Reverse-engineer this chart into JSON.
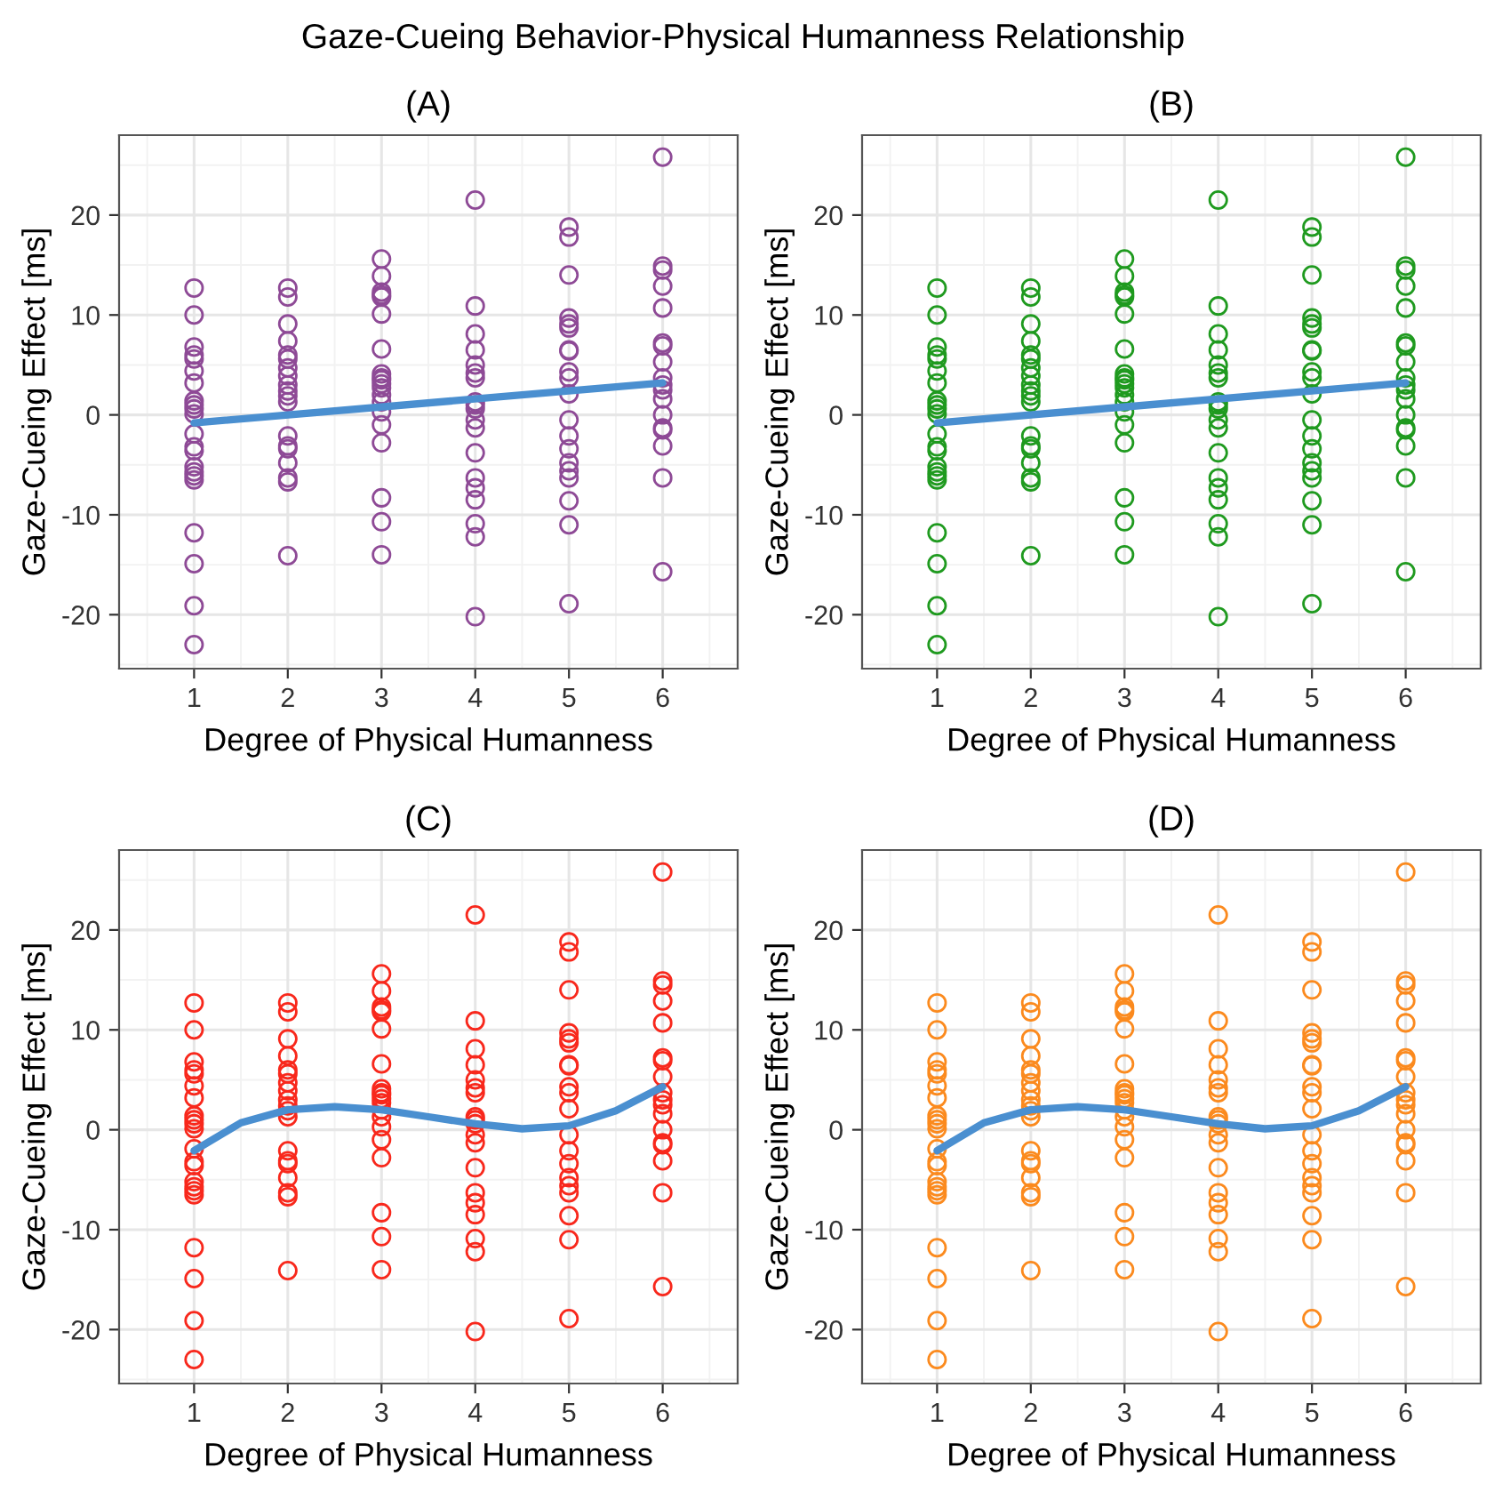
{
  "chart_data": [
    {
      "type": "scatter",
      "title": "(A)",
      "annotations": [
        "Gaze-Cueing Behavior-Physical Humanness Relationship"
      ],
      "xlabel": "Degree of Physical Humanness",
      "ylabel": "Gaze-Cueing Effect [ms]",
      "xlim": [
        0.2,
        6.8
      ],
      "xticks": [
        1,
        2,
        3,
        4,
        5,
        6
      ],
      "ylim": [
        -25.4,
        28.0
      ],
      "yticks": [
        -20,
        -10,
        0,
        10,
        20
      ],
      "grid": true,
      "marker": "circle",
      "series": [
        {
          "color": "#8e4a96",
          "x": [
            1,
            1,
            1,
            1,
            1,
            1,
            1,
            1,
            1,
            1,
            1,
            1,
            1,
            1,
            1,
            1,
            1,
            1,
            1,
            1,
            1,
            1,
            2,
            2,
            2,
            2,
            2,
            2,
            2,
            2,
            2,
            2,
            2,
            2,
            2,
            2,
            2,
            2,
            2,
            2,
            2,
            3,
            3,
            3,
            3,
            3,
            3,
            3,
            3,
            3,
            3,
            3,
            3,
            3,
            3,
            3,
            3,
            3,
            3,
            3,
            3,
            4,
            4,
            4,
            4,
            4,
            4,
            4,
            4,
            4,
            4,
            4,
            4,
            4,
            4,
            4,
            4,
            4,
            4,
            4,
            5,
            5,
            5,
            5,
            5,
            5,
            5,
            5,
            5,
            5,
            5,
            5,
            5,
            5,
            5,
            5,
            5,
            5,
            5,
            5,
            6,
            6,
            6,
            6,
            6,
            6,
            6,
            6,
            6,
            6,
            6,
            6,
            6,
            6,
            6,
            6,
            6,
            6
          ],
          "values": [
            12.7,
            10.0,
            6.8,
            6.0,
            5.6,
            4.4,
            3.2,
            1.4,
            1.0,
            0.6,
            0.1,
            -1.9,
            -3.2,
            -3.6,
            -5.2,
            -5.7,
            -6.1,
            -6.5,
            -11.8,
            -14.9,
            -19.1,
            -23.0,
            12.7,
            11.8,
            9.1,
            7.4,
            6.0,
            5.6,
            4.7,
            3.9,
            3.0,
            2.4,
            1.9,
            1.3,
            -2.1,
            -3.1,
            -3.4,
            -4.8,
            -6.3,
            -6.7,
            -14.1,
            15.6,
            13.9,
            12.3,
            12.0,
            11.8,
            10.1,
            6.6,
            4.1,
            3.7,
            3.5,
            3.1,
            2.7,
            2.0,
            1.3,
            0.3,
            -1.0,
            -2.8,
            -8.3,
            -10.7,
            -14.0,
            21.5,
            10.9,
            8.1,
            6.5,
            5.0,
            4.2,
            3.7,
            1.3,
            1.0,
            0.6,
            -0.5,
            -1.3,
            -3.8,
            -6.3,
            -7.3,
            -8.5,
            -10.9,
            -12.2,
            -20.2,
            18.8,
            17.8,
            14.0,
            9.7,
            9.1,
            8.7,
            6.5,
            6.4,
            4.3,
            3.7,
            2.1,
            -0.5,
            -2.1,
            -3.4,
            -4.8,
            -5.6,
            -6.3,
            -8.6,
            -11.0,
            -18.9,
            25.8,
            14.9,
            14.5,
            12.9,
            10.7,
            7.2,
            6.9,
            5.3,
            3.7,
            3.0,
            2.5,
            1.6,
            0.0,
            -1.3,
            -1.5,
            -3.1,
            -6.3,
            -15.7
          ]
        },
        {
          "type": "line",
          "color": "#4a8fd0",
          "marker": "none",
          "x": [
            1,
            6
          ],
          "values": [
            -0.8,
            3.2
          ]
        }
      ]
    },
    {
      "type": "scatter",
      "title": "(B)",
      "xlabel": "Degree of Physical Humanness",
      "ylabel": "Gaze-Cueing Effect [ms]",
      "xlim": [
        0.2,
        6.8
      ],
      "xticks": [
        1,
        2,
        3,
        4,
        5,
        6
      ],
      "ylim": [
        -25.4,
        28.0
      ],
      "yticks": [
        -20,
        -10,
        0,
        10,
        20
      ],
      "grid": true,
      "marker": "circle",
      "series": [
        {
          "color": "#1f9a1f",
          "x": [
            1,
            1,
            1,
            1,
            1,
            1,
            1,
            1,
            1,
            1,
            1,
            1,
            1,
            1,
            1,
            1,
            1,
            1,
            1,
            1,
            1,
            1,
            2,
            2,
            2,
            2,
            2,
            2,
            2,
            2,
            2,
            2,
            2,
            2,
            2,
            2,
            2,
            2,
            2,
            2,
            2,
            3,
            3,
            3,
            3,
            3,
            3,
            3,
            3,
            3,
            3,
            3,
            3,
            3,
            3,
            3,
            3,
            3,
            3,
            3,
            3,
            4,
            4,
            4,
            4,
            4,
            4,
            4,
            4,
            4,
            4,
            4,
            4,
            4,
            4,
            4,
            4,
            4,
            4,
            4,
            5,
            5,
            5,
            5,
            5,
            5,
            5,
            5,
            5,
            5,
            5,
            5,
            5,
            5,
            5,
            5,
            5,
            5,
            5,
            5,
            6,
            6,
            6,
            6,
            6,
            6,
            6,
            6,
            6,
            6,
            6,
            6,
            6,
            6,
            6,
            6,
            6,
            6
          ],
          "values": [
            12.7,
            10.0,
            6.8,
            6.0,
            5.6,
            4.4,
            3.2,
            1.4,
            1.0,
            0.6,
            0.1,
            -1.9,
            -3.2,
            -3.6,
            -5.2,
            -5.7,
            -6.1,
            -6.5,
            -11.8,
            -14.9,
            -19.1,
            -23.0,
            12.7,
            11.8,
            9.1,
            7.4,
            6.0,
            5.6,
            4.7,
            3.9,
            3.0,
            2.4,
            1.9,
            1.3,
            -2.1,
            -3.1,
            -3.4,
            -4.8,
            -6.3,
            -6.7,
            -14.1,
            15.6,
            13.9,
            12.3,
            12.0,
            11.8,
            10.1,
            6.6,
            4.1,
            3.7,
            3.5,
            3.1,
            2.7,
            2.0,
            1.3,
            0.3,
            -1.0,
            -2.8,
            -8.3,
            -10.7,
            -14.0,
            21.5,
            10.9,
            8.1,
            6.5,
            5.0,
            4.2,
            3.7,
            1.3,
            1.0,
            0.6,
            -0.5,
            -1.3,
            -3.8,
            -6.3,
            -7.3,
            -8.5,
            -10.9,
            -12.2,
            -20.2,
            18.8,
            17.8,
            14.0,
            9.7,
            9.1,
            8.7,
            6.5,
            6.4,
            4.3,
            3.7,
            2.1,
            -0.5,
            -2.1,
            -3.4,
            -4.8,
            -5.6,
            -6.3,
            -8.6,
            -11.0,
            -18.9,
            25.8,
            14.9,
            14.5,
            12.9,
            10.7,
            7.2,
            6.9,
            5.3,
            3.7,
            3.0,
            2.5,
            1.6,
            0.0,
            -1.3,
            -1.5,
            -3.1,
            -6.3,
            -15.7
          ]
        },
        {
          "type": "line",
          "color": "#4a8fd0",
          "marker": "none",
          "x": [
            1,
            6
          ],
          "values": [
            -0.8,
            3.2
          ]
        }
      ]
    },
    {
      "type": "scatter",
      "title": "(C)",
      "xlabel": "Degree of Physical Humanness",
      "ylabel": "Gaze-Cueing Effect [ms]",
      "xlim": [
        0.2,
        6.8
      ],
      "xticks": [
        1,
        2,
        3,
        4,
        5,
        6
      ],
      "ylim": [
        -25.4,
        28.0
      ],
      "yticks": [
        -20,
        -10,
        0,
        10,
        20
      ],
      "grid": true,
      "marker": "circle",
      "series": [
        {
          "color": "#f8281c",
          "x": [
            1,
            1,
            1,
            1,
            1,
            1,
            1,
            1,
            1,
            1,
            1,
            1,
            1,
            1,
            1,
            1,
            1,
            1,
            1,
            1,
            1,
            1,
            2,
            2,
            2,
            2,
            2,
            2,
            2,
            2,
            2,
            2,
            2,
            2,
            2,
            2,
            2,
            2,
            2,
            2,
            2,
            3,
            3,
            3,
            3,
            3,
            3,
            3,
            3,
            3,
            3,
            3,
            3,
            3,
            3,
            3,
            3,
            3,
            3,
            3,
            3,
            4,
            4,
            4,
            4,
            4,
            4,
            4,
            4,
            4,
            4,
            4,
            4,
            4,
            4,
            4,
            4,
            4,
            4,
            4,
            5,
            5,
            5,
            5,
            5,
            5,
            5,
            5,
            5,
            5,
            5,
            5,
            5,
            5,
            5,
            5,
            5,
            5,
            5,
            5,
            6,
            6,
            6,
            6,
            6,
            6,
            6,
            6,
            6,
            6,
            6,
            6,
            6,
            6,
            6,
            6,
            6,
            6
          ],
          "values": [
            12.7,
            10.0,
            6.8,
            6.0,
            5.6,
            4.4,
            3.2,
            1.4,
            1.0,
            0.6,
            0.1,
            -1.9,
            -3.2,
            -3.6,
            -5.2,
            -5.7,
            -6.1,
            -6.5,
            -11.8,
            -14.9,
            -19.1,
            -23.0,
            12.7,
            11.8,
            9.1,
            7.4,
            6.0,
            5.6,
            4.7,
            3.9,
            3.0,
            2.4,
            1.9,
            1.3,
            -2.1,
            -3.1,
            -3.4,
            -4.8,
            -6.3,
            -6.7,
            -14.1,
            15.6,
            13.9,
            12.3,
            12.0,
            11.8,
            10.1,
            6.6,
            4.1,
            3.7,
            3.5,
            3.1,
            2.7,
            2.0,
            1.3,
            0.3,
            -1.0,
            -2.8,
            -8.3,
            -10.7,
            -14.0,
            21.5,
            10.9,
            8.1,
            6.5,
            5.0,
            4.2,
            3.7,
            1.3,
            1.0,
            0.6,
            -0.5,
            -1.3,
            -3.8,
            -6.3,
            -7.3,
            -8.5,
            -10.9,
            -12.2,
            -20.2,
            18.8,
            17.8,
            14.0,
            9.7,
            9.1,
            8.7,
            6.5,
            6.4,
            4.3,
            3.7,
            2.1,
            -0.5,
            -2.1,
            -3.4,
            -4.8,
            -5.6,
            -6.3,
            -8.6,
            -11.0,
            -18.9,
            25.8,
            14.9,
            14.5,
            12.9,
            10.7,
            7.2,
            6.9,
            5.3,
            3.7,
            3.0,
            2.5,
            1.6,
            0.0,
            -1.3,
            -1.5,
            -3.1,
            -6.3,
            -15.7
          ]
        },
        {
          "type": "line",
          "color": "#4a8fd0",
          "marker": "none",
          "x": [
            1,
            1.5,
            2,
            2.5,
            3,
            3.5,
            4,
            4.5,
            5,
            5.5,
            6
          ],
          "values": [
            -2.1,
            0.7,
            2.0,
            2.3,
            2.0,
            1.3,
            0.6,
            0.1,
            0.4,
            1.9,
            4.3
          ]
        }
      ]
    },
    {
      "type": "scatter",
      "title": "(D)",
      "xlabel": "Degree of Physical Humanness",
      "ylabel": "Gaze-Cueing Effect [ms]",
      "xlim": [
        0.2,
        6.8
      ],
      "xticks": [
        1,
        2,
        3,
        4,
        5,
        6
      ],
      "ylim": [
        -25.4,
        28.0
      ],
      "yticks": [
        -20,
        -10,
        0,
        10,
        20
      ],
      "grid": true,
      "marker": "circle",
      "series": [
        {
          "color": "#fb8a1e",
          "x": [
            1,
            1,
            1,
            1,
            1,
            1,
            1,
            1,
            1,
            1,
            1,
            1,
            1,
            1,
            1,
            1,
            1,
            1,
            1,
            1,
            1,
            1,
            2,
            2,
            2,
            2,
            2,
            2,
            2,
            2,
            2,
            2,
            2,
            2,
            2,
            2,
            2,
            2,
            2,
            2,
            2,
            3,
            3,
            3,
            3,
            3,
            3,
            3,
            3,
            3,
            3,
            3,
            3,
            3,
            3,
            3,
            3,
            3,
            3,
            3,
            3,
            4,
            4,
            4,
            4,
            4,
            4,
            4,
            4,
            4,
            4,
            4,
            4,
            4,
            4,
            4,
            4,
            4,
            4,
            4,
            5,
            5,
            5,
            5,
            5,
            5,
            5,
            5,
            5,
            5,
            5,
            5,
            5,
            5,
            5,
            5,
            5,
            5,
            5,
            5,
            6,
            6,
            6,
            6,
            6,
            6,
            6,
            6,
            6,
            6,
            6,
            6,
            6,
            6,
            6,
            6,
            6,
            6
          ],
          "values": [
            12.7,
            10.0,
            6.8,
            6.0,
            5.6,
            4.4,
            3.2,
            1.4,
            1.0,
            0.6,
            0.1,
            -1.9,
            -3.2,
            -3.6,
            -5.2,
            -5.7,
            -6.1,
            -6.5,
            -11.8,
            -14.9,
            -19.1,
            -23.0,
            12.7,
            11.8,
            9.1,
            7.4,
            6.0,
            5.6,
            4.7,
            3.9,
            3.0,
            2.4,
            1.9,
            1.3,
            -2.1,
            -3.1,
            -3.4,
            -4.8,
            -6.3,
            -6.7,
            -14.1,
            15.6,
            13.9,
            12.3,
            12.0,
            11.8,
            10.1,
            6.6,
            4.1,
            3.7,
            3.5,
            3.1,
            2.7,
            2.0,
            1.3,
            0.3,
            -1.0,
            -2.8,
            -8.3,
            -10.7,
            -14.0,
            21.5,
            10.9,
            8.1,
            6.5,
            5.0,
            4.2,
            3.7,
            1.3,
            1.0,
            0.6,
            -0.5,
            -1.3,
            -3.8,
            -6.3,
            -7.3,
            -8.5,
            -10.9,
            -12.2,
            -20.2,
            18.8,
            17.8,
            14.0,
            9.7,
            9.1,
            8.7,
            6.5,
            6.4,
            4.3,
            3.7,
            2.1,
            -0.5,
            -2.1,
            -3.4,
            -4.8,
            -5.6,
            -6.3,
            -8.6,
            -11.0,
            -18.9,
            25.8,
            14.9,
            14.5,
            12.9,
            10.7,
            7.2,
            6.9,
            5.3,
            3.7,
            3.0,
            2.5,
            1.6,
            0.0,
            -1.3,
            -1.5,
            -3.1,
            -6.3,
            -15.7
          ]
        },
        {
          "type": "line",
          "color": "#4a8fd0",
          "marker": "none",
          "x": [
            1,
            1.5,
            2,
            2.5,
            3,
            3.5,
            4,
            4.5,
            5,
            5.5,
            6
          ],
          "values": [
            -2.1,
            0.7,
            2.0,
            2.3,
            2.0,
            1.3,
            0.6,
            0.1,
            0.4,
            1.9,
            4.3
          ]
        }
      ]
    }
  ]
}
